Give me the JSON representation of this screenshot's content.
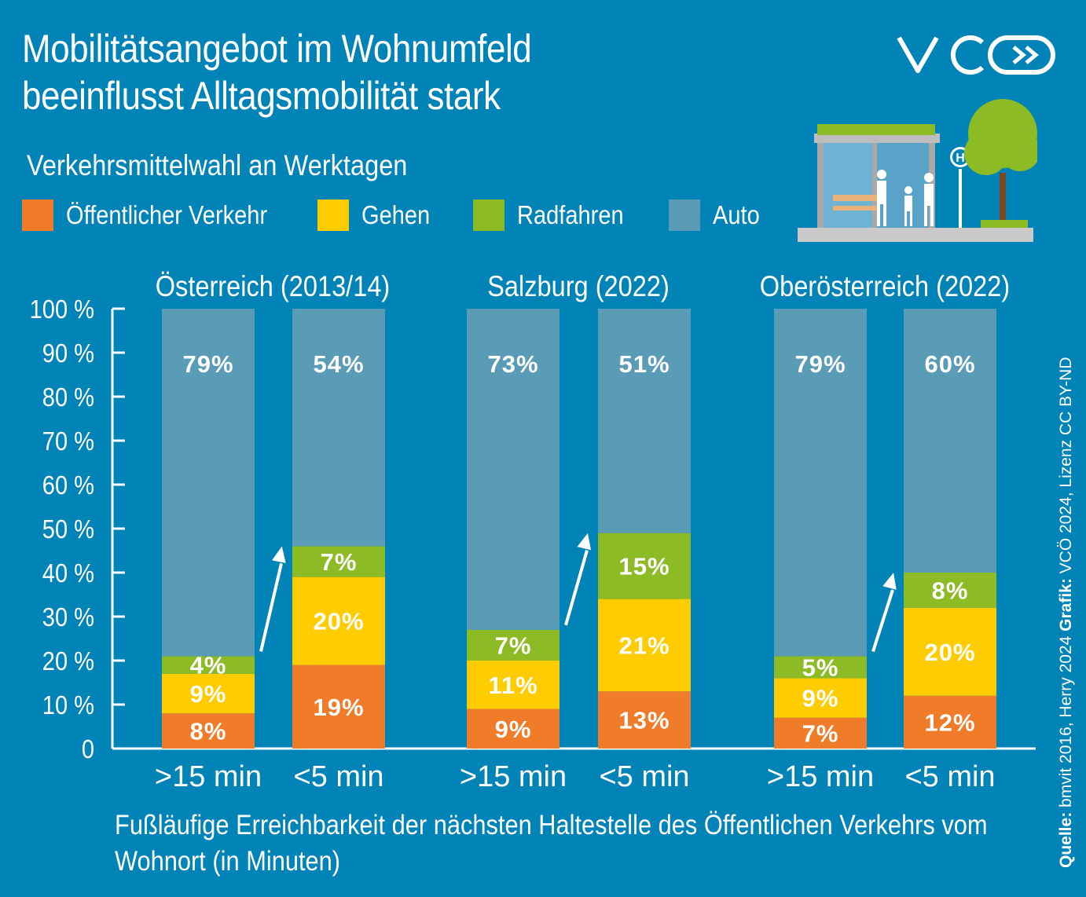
{
  "title_line1": "Mobilitätsangebot im Wohnumfeld",
  "title_line2": "beeinflusst Alltagsmobilität stark",
  "subtitle": "Verkehrsmittelwahl an Werktagen",
  "logo_text": "VCÖ",
  "xaxis_title": "Fußläufige Erreichbarkeit der nächsten Haltestelle des Öffentlichen Verkehrs vom Wohnort (in Minuten)",
  "source": {
    "label1": "Quelle:",
    "text1": " bmvit 2016, Herry 2024 ",
    "label2": "Grafik:",
    "text2": " VCÖ 2024, Lizenz CC BY-ND"
  },
  "colors": {
    "background": "#0083b6",
    "oeffentlich": "#f07c2a",
    "gehen": "#ffcc00",
    "radfahren": "#8cbb25",
    "auto": "#5a9bb5"
  },
  "chart_data": {
    "type": "stacked-bar",
    "title": "Verkehrsmittelwahl an Werktagen",
    "xlabel": "Fußläufige Erreichbarkeit der nächsten Haltestelle des Öffentlichen Verkehrs vom Wohnort (in Minuten)",
    "ylabel": "",
    "ylim": [
      0,
      100
    ],
    "yticks": [
      "0",
      "10 %",
      "20 %",
      "30 %",
      "40 %",
      "50 %",
      "60 %",
      "70 %",
      "80 %",
      "90 %",
      "100 %"
    ],
    "legend_position": "top-left",
    "series_names": [
      "Öffentlicher Verkehr",
      "Gehen",
      "Radfahren",
      "Auto"
    ],
    "groups": [
      {
        "name": "Österreich (2013/14)",
        "bars": [
          {
            "label": ">15 min",
            "values": [
              8,
              9,
              4,
              79
            ],
            "labels": [
              "8%",
              "9%",
              "4%",
              "79%"
            ]
          },
          {
            "label": "<5 min",
            "values": [
              19,
              20,
              7,
              54
            ],
            "labels": [
              "19%",
              "20%",
              "7%",
              "54%"
            ]
          }
        ]
      },
      {
        "name": "Salzburg (2022)",
        "bars": [
          {
            "label": ">15 min",
            "values": [
              9,
              11,
              7,
              73
            ],
            "labels": [
              "9%",
              "11%",
              "7%",
              "73%"
            ]
          },
          {
            "label": "<5 min",
            "values": [
              13,
              21,
              15,
              51
            ],
            "labels": [
              "13%",
              "21%",
              "15%",
              "51%"
            ]
          }
        ]
      },
      {
        "name": "Oberösterreich (2022)",
        "bars": [
          {
            "label": ">15 min",
            "values": [
              7,
              9,
              5,
              79
            ],
            "labels": [
              "7%",
              "9%",
              "5%",
              "79%"
            ]
          },
          {
            "label": "<5 min",
            "values": [
              12,
              20,
              8,
              60
            ],
            "labels": [
              "12%",
              "20%",
              "8%",
              "60%"
            ]
          }
        ]
      }
    ]
  }
}
